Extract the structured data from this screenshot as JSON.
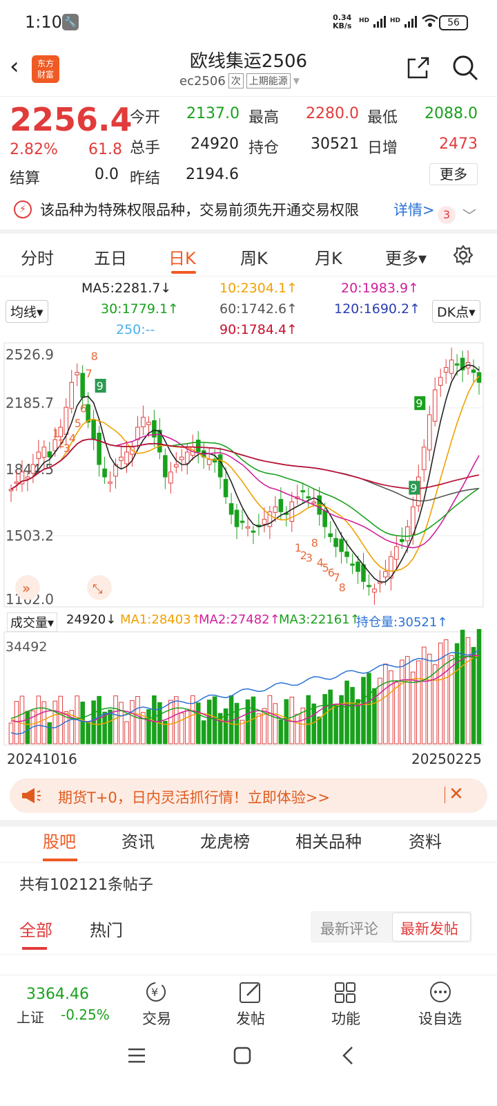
{
  "status": {
    "time": "1:10",
    "net_speed": "0.34",
    "net_unit": "KB/s",
    "hd1": "HD",
    "hd2": "HD",
    "battery": "56"
  },
  "header": {
    "title": "欧线集运2506",
    "code": "ec2506",
    "tag1": "次",
    "tag2": "上期能源",
    "logo_top": "东方",
    "logo_bottom": "财富"
  },
  "quote": {
    "price": "2256.4",
    "pct": "2.82%",
    "change": "61.8",
    "open_label": "今开",
    "open": "2137.0",
    "high_label": "最高",
    "high": "2280.0",
    "low_label": "最低",
    "low": "2088.0",
    "vol_label": "总手",
    "vol": "24920",
    "oi_label": "持仓",
    "oi": "30521",
    "inc_label": "日增",
    "inc": "2473",
    "settle_label": "结算",
    "settle": "0.0",
    "prev_label": "昨结",
    "prev": "2194.6",
    "more": "更多"
  },
  "notice": {
    "text": "该品种为特殊权限品种，交易前须先开通交易权限",
    "link": "详情>",
    "badge": "3"
  },
  "tabs": [
    "分时",
    "五日",
    "日K",
    "周K",
    "月K",
    "更多▾"
  ],
  "ma": {
    "ma5": "MA5:2281.7↓",
    "ma10": "10:2304.1↑",
    "ma20": "20:1983.9↑",
    "ma30": "30:1779.1↑",
    "ma60": "60:1742.6↑",
    "ma120": "120:1690.2↑",
    "ma250": "250:--",
    "ma90": "90:1784.4↑",
    "junxian": "均线▾",
    "dk": "DK点▾"
  },
  "chart_data": {
    "type": "candlestick",
    "y_ticks": [
      "2526.9",
      "2185.7",
      "1844.5",
      "1503.2",
      "1162.0"
    ],
    "ylim": [
      1162.0,
      2526.9
    ],
    "x_start": "20241016",
    "x_end": "20250225",
    "signal_labels": [
      "8",
      "7",
      "9",
      "1",
      "2",
      "3",
      "4",
      "5",
      "6",
      "8",
      "9",
      "1",
      "2",
      "3",
      "4",
      "5",
      "6",
      "7",
      "8",
      "9"
    ]
  },
  "volume": {
    "label": "成交量▾",
    "value": "24920↓",
    "ma1": "MA1:28403↑",
    "ma2": "MA2:27482↑",
    "ma3": "MA3:22161↑",
    "oi": "持仓量:30521↑",
    "max": "34492",
    "start": "20241016",
    "end": "20250225"
  },
  "promo": {
    "text": "期货T+0，日内灵活抓行情！立即体验>>",
    "close": "✕"
  },
  "guba_tabs": [
    "股吧",
    "资讯",
    "龙虎榜",
    "相关品种",
    "资料"
  ],
  "posts": {
    "count": "共有102121条帖子",
    "all": "全部",
    "hot": "热门",
    "sort1": "最新评论",
    "sort2": "最新发帖"
  },
  "bottom": {
    "index_value": "3364.46",
    "index_name": "上证",
    "index_pct": "-0.25%",
    "trade": "交易",
    "post": "发帖",
    "func": "功能",
    "watch": "设自选"
  },
  "colors": {
    "up": "#e23b3b",
    "down": "#19a11c",
    "accent": "#f05a24"
  }
}
